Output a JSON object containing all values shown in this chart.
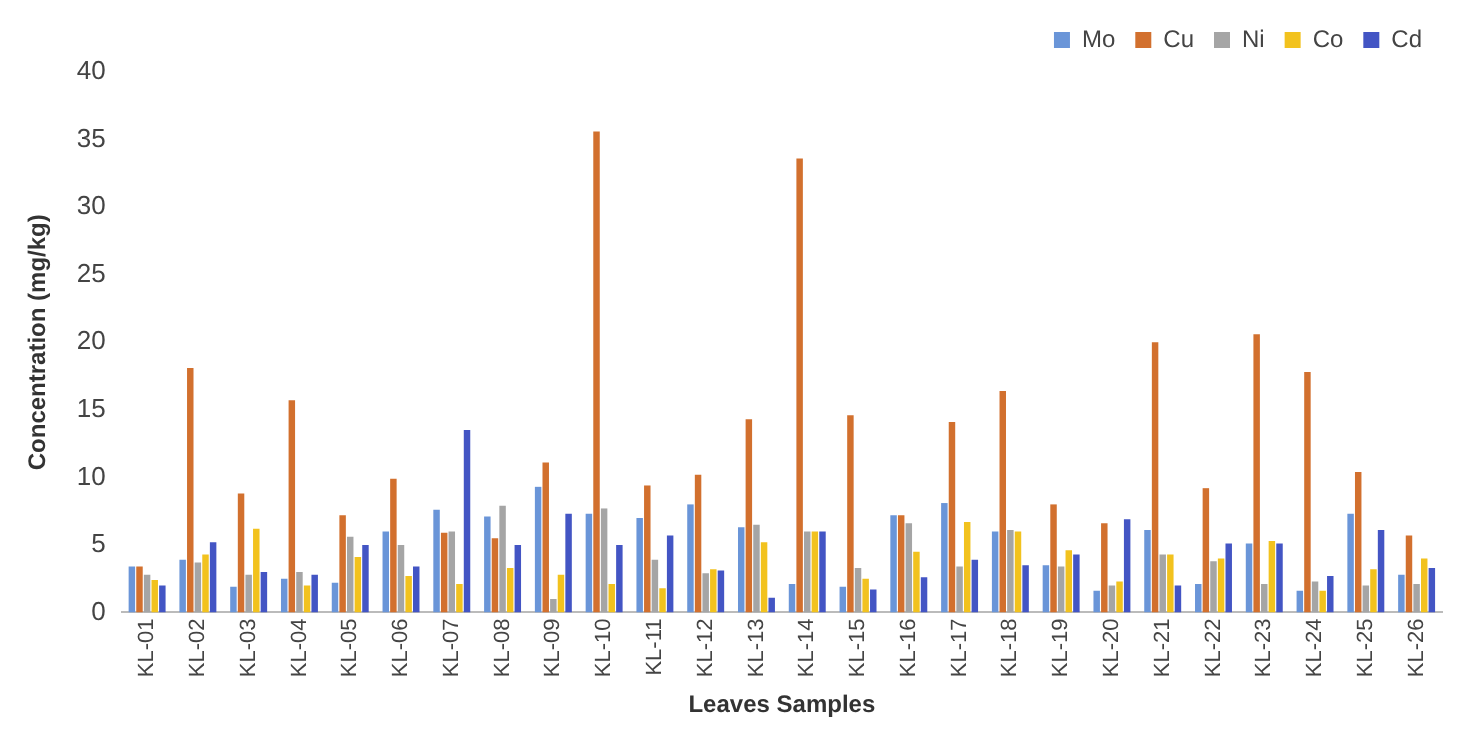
{
  "chart_data": {
    "type": "bar",
    "xlabel": "Leaves Samples",
    "ylabel": "Concentration (mg/kg)",
    "categories": [
      "KL-01",
      "KL-02",
      "KL-03",
      "KL-04",
      "KL-05",
      "KL-06",
      "KL-07",
      "KL-08",
      "KL-09",
      "KL-10",
      "KL-11",
      "KL-12",
      "KL-13",
      "KL-14",
      "KL-15",
      "KL-16",
      "KL-17",
      "KL-18",
      "KL-19",
      "KL-20",
      "KL-21",
      "KL-22",
      "KL-23",
      "KL-24",
      "KL-25",
      "KL-26"
    ],
    "series": [
      {
        "name": "Mo",
        "color": "#6a95d8",
        "values": [
          3.4,
          3.9,
          1.9,
          2.5,
          2.2,
          6.0,
          7.6,
          7.1,
          9.3,
          7.3,
          7.0,
          8.0,
          6.3,
          2.1,
          1.9,
          7.2,
          8.1,
          6.0,
          3.5,
          1.6,
          6.1,
          2.1,
          5.1,
          1.6,
          7.3,
          2.8
        ]
      },
      {
        "name": "Cu",
        "color": "#d2702e",
        "values": [
          3.4,
          18.1,
          8.8,
          15.7,
          7.2,
          9.9,
          5.9,
          5.5,
          11.1,
          35.6,
          9.4,
          10.2,
          14.3,
          33.6,
          14.6,
          7.2,
          14.1,
          16.4,
          8.0,
          6.6,
          20.0,
          9.2,
          20.6,
          17.8,
          10.4,
          5.7
        ]
      },
      {
        "name": "Ni",
        "color": "#a5a5a5",
        "values": [
          2.8,
          3.7,
          2.8,
          3.0,
          5.6,
          5.0,
          6.0,
          7.9,
          1.0,
          7.7,
          3.9,
          2.9,
          6.5,
          6.0,
          3.3,
          6.6,
          3.4,
          6.1,
          3.4,
          2.0,
          4.3,
          3.8,
          2.1,
          2.3,
          2.0,
          2.1
        ]
      },
      {
        "name": "Co",
        "color": "#f2c21e",
        "values": [
          2.4,
          4.3,
          6.2,
          2.0,
          4.1,
          2.7,
          2.1,
          3.3,
          2.8,
          2.1,
          1.8,
          3.2,
          5.2,
          6.0,
          2.5,
          4.5,
          6.7,
          6.0,
          4.6,
          2.3,
          4.3,
          4.0,
          5.3,
          1.6,
          3.2,
          4.0
        ]
      },
      {
        "name": "Cd",
        "color": "#4355c4",
        "values": [
          2.0,
          5.2,
          3.0,
          2.8,
          5.0,
          3.4,
          13.5,
          5.0,
          7.3,
          5.0,
          5.7,
          3.1,
          1.1,
          6.0,
          1.7,
          2.6,
          3.9,
          3.5,
          4.3,
          6.9,
          2.0,
          5.1,
          5.1,
          2.7,
          6.1,
          3.3
        ]
      }
    ],
    "ylim": [
      0,
      40
    ],
    "yticks": [
      0,
      5,
      10,
      15,
      20,
      25,
      30,
      35,
      40
    ],
    "grid": false,
    "legend": "top right"
  }
}
